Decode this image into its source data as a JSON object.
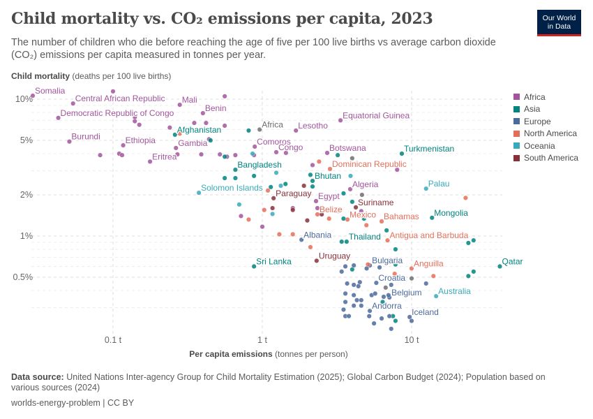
{
  "header": {
    "title": "Child mortality vs. CO₂ emissions per capita, 2023",
    "subtitle": "The number of children who die before reaching the age of five per 100 live births vs average carbon dioxide (CO₂) emissions per capita measured in tonnes per year.",
    "logo_line1": "Our World",
    "logo_line2": "in Data"
  },
  "footer": {
    "source_label": "Data source:",
    "source_text": "United Nations Inter-agency Group for Child Mortality Estimation (2025); Global Carbon Budget (2024); Population based on various sources (2024)",
    "license": "worlds-energy-problem | CC BY"
  },
  "chart_data": {
    "type": "scatter",
    "title": "Child mortality vs. CO₂ emissions per capita, 2023",
    "xlabel_bold": "Per capita emissions",
    "xlabel_rest": "(tonnes per person)",
    "ylabel_bold": "Child mortality",
    "ylabel_rest": "(deaths per 100 live births)",
    "xscale": "log",
    "yscale": "log",
    "xlim": [
      0.025,
      45
    ],
    "ylim": [
      0.19,
      12
    ],
    "xticks": [
      {
        "v": 0.1,
        "label": "0.1 t"
      },
      {
        "v": 1,
        "label": "1 t"
      },
      {
        "v": 10,
        "label": "10 t"
      }
    ],
    "yticks": [
      {
        "v": 0.5,
        "label": "0.5%"
      },
      {
        "v": 1,
        "label": "1%"
      },
      {
        "v": 2,
        "label": "2%"
      },
      {
        "v": 5,
        "label": "5%"
      },
      {
        "v": 10,
        "label": "10%"
      }
    ],
    "yminor": [
      0.3,
      0.4,
      0.6,
      0.7,
      0.8,
      0.9,
      3,
      4,
      6,
      7,
      8,
      9
    ],
    "legend_position": "right",
    "legend": [
      {
        "name": "Africa",
        "color": "#a2559c"
      },
      {
        "name": "Asia",
        "color": "#00847e"
      },
      {
        "name": "Europe",
        "color": "#4c6a9c"
      },
      {
        "name": "North America",
        "color": "#e56e5a"
      },
      {
        "name": "Oceania",
        "color": "#38aaba"
      },
      {
        "name": "South America",
        "color": "#883039"
      }
    ],
    "other_color": "#6e6e6e",
    "points": [
      {
        "label": "Somalia",
        "r": "Africa",
        "x": 0.029,
        "y": 10.6
      },
      {
        "label": "Central African Republic",
        "r": "Africa",
        "x": 0.054,
        "y": 9.3
      },
      {
        "label": "Mali",
        "r": "Africa",
        "x": 0.28,
        "y": 9.1
      },
      {
        "label": "Benin",
        "r": "Africa",
        "x": 0.4,
        "y": 7.9
      },
      {
        "label": "Democratic Republic of Congo",
        "r": "Africa",
        "x": 0.043,
        "y": 7.3
      },
      {
        "label": "Burundi",
        "r": "Africa",
        "x": 0.051,
        "y": 4.9
      },
      {
        "label": "Ethiopia",
        "r": "Africa",
        "x": 0.117,
        "y": 4.6
      },
      {
        "label": "Eritrea",
        "r": "Africa",
        "x": 0.177,
        "y": 3.5
      },
      {
        "label": "Gambia",
        "r": "Africa",
        "x": 0.264,
        "y": 4.4
      },
      {
        "label": "Afghanistan",
        "r": "Asia",
        "x": 0.26,
        "y": 5.5
      },
      {
        "label": "Africa",
        "r": "Other",
        "x": 0.96,
        "y": 6.0
      },
      {
        "label": "Lesotho",
        "r": "Africa",
        "x": 1.68,
        "y": 5.9
      },
      {
        "label": "Equatorial Guinea",
        "r": "Africa",
        "x": 3.34,
        "y": 7.0
      },
      {
        "label": "Comoros",
        "r": "Africa",
        "x": 0.89,
        "y": 4.5
      },
      {
        "label": "Congo",
        "r": "Africa",
        "x": 1.24,
        "y": 4.1
      },
      {
        "label": "Bangladesh",
        "r": "Asia",
        "x": 0.66,
        "y": 3.05
      },
      {
        "label": "Botswana",
        "r": "Africa",
        "x": 2.72,
        "y": 4.05
      },
      {
        "label": "Turkmenistan",
        "r": "Asia",
        "x": 8.6,
        "y": 4.0
      },
      {
        "label": "Dominican Republic",
        "r": "North America",
        "x": 2.84,
        "y": 3.09
      },
      {
        "label": "Solomon Islands",
        "r": "Oceania",
        "x": 0.376,
        "y": 2.07
      },
      {
        "label": "Bhutan",
        "r": "Asia",
        "x": 2.17,
        "y": 2.53
      },
      {
        "label": "Algeria",
        "r": "Africa",
        "x": 3.88,
        "y": 2.2
      },
      {
        "label": "Palau",
        "r": "Oceania",
        "x": 12.5,
        "y": 2.22
      },
      {
        "label": "Paraguay",
        "r": "South America",
        "x": 1.19,
        "y": 1.89
      },
      {
        "label": "Egypt",
        "r": "Africa",
        "x": 2.29,
        "y": 1.8
      },
      {
        "label": "Suriname",
        "r": "South America",
        "x": 4.23,
        "y": 1.62
      },
      {
        "label": "Belize",
        "r": "North America",
        "x": 2.34,
        "y": 1.44
      },
      {
        "label": "Mexico",
        "r": "North America",
        "x": 3.72,
        "y": 1.32
      },
      {
        "label": "Bahamas",
        "r": "North America",
        "x": 6.3,
        "y": 1.28
      },
      {
        "label": "Mongolia",
        "r": "Asia",
        "x": 13.7,
        "y": 1.36
      },
      {
        "label": "Albania",
        "r": "Europe",
        "x": 1.83,
        "y": 0.94
      },
      {
        "label": "Thailand",
        "r": "Asia",
        "x": 3.67,
        "y": 0.91
      },
      {
        "label": "Antigua and Barbuda",
        "r": "North America",
        "x": 6.9,
        "y": 0.93
      },
      {
        "label": "Sri Lanka",
        "r": "Asia",
        "x": 0.88,
        "y": 0.6
      },
      {
        "label": "Uruguay",
        "r": "South America",
        "x": 2.31,
        "y": 0.66
      },
      {
        "label": "Bulgaria",
        "r": "Europe",
        "x": 5.25,
        "y": 0.61
      },
      {
        "label": "Anguilla",
        "r": "North America",
        "x": 10,
        "y": 0.58
      },
      {
        "label": "Qatar",
        "r": "Asia",
        "x": 39,
        "y": 0.6
      },
      {
        "label": "Croatia",
        "r": "Europe",
        "x": 5.8,
        "y": 0.455
      },
      {
        "label": "Belgium",
        "r": "Europe",
        "x": 7.1,
        "y": 0.356
      },
      {
        "label": "Australia",
        "r": "Oceania",
        "x": 14.6,
        "y": 0.364
      },
      {
        "label": "Andorra",
        "r": "Europe",
        "x": 5.25,
        "y": 0.284
      },
      {
        "label": "Iceland",
        "r": "Europe",
        "x": 9.7,
        "y": 0.256
      },
      {
        "r": "Africa",
        "x": 0.1,
        "y": 11.4
      },
      {
        "r": "Africa",
        "x": 0.56,
        "y": 10.5
      },
      {
        "r": "Africa",
        "x": 0.14,
        "y": 7.4
      },
      {
        "r": "Africa",
        "x": 0.14,
        "y": 6.9
      },
      {
        "r": "Africa",
        "x": 0.15,
        "y": 6.5
      },
      {
        "r": "Africa",
        "x": 0.24,
        "y": 6.2
      },
      {
        "r": "Africa",
        "x": 0.35,
        "y": 6.7
      },
      {
        "r": "Africa",
        "x": 0.42,
        "y": 6.7
      },
      {
        "r": "Africa",
        "x": 0.56,
        "y": 6.4
      },
      {
        "r": "Africa",
        "x": 0.082,
        "y": 3.9
      },
      {
        "r": "Africa",
        "x": 0.11,
        "y": 4.0
      },
      {
        "r": "Africa",
        "x": 0.115,
        "y": 3.9
      },
      {
        "r": "Africa",
        "x": 0.39,
        "y": 3.95
      },
      {
        "r": "Africa",
        "x": 0.52,
        "y": 3.95
      },
      {
        "r": "Africa",
        "x": 0.58,
        "y": 3.8
      },
      {
        "r": "Africa",
        "x": 0.66,
        "y": 3.9
      },
      {
        "r": "Africa",
        "x": 0.88,
        "y": 3.9
      },
      {
        "r": "Africa",
        "x": 1.44,
        "y": 4.05
      },
      {
        "r": "Africa",
        "x": 2.17,
        "y": 3.3
      },
      {
        "r": "Africa",
        "x": 8.0,
        "y": 3.05
      },
      {
        "r": "Africa",
        "x": 0.27,
        "y": 3.95
      },
      {
        "r": "Africa",
        "x": 0.44,
        "y": 5.1
      },
      {
        "r": "Africa",
        "x": 2.34,
        "y": 1.6
      },
      {
        "r": "Africa",
        "x": 3.2,
        "y": 1.52
      },
      {
        "r": "Africa",
        "x": 1.6,
        "y": 1.6
      },
      {
        "r": "Africa",
        "x": 1.0,
        "y": 1.17
      },
      {
        "r": "Africa",
        "x": 0.72,
        "y": 1.4
      },
      {
        "r": "Africa",
        "x": 4.6,
        "y": 1.52
      },
      {
        "r": "Asia",
        "x": 0.81,
        "y": 5.9
      },
      {
        "r": "Asia",
        "x": 0.45,
        "y": 5.0
      },
      {
        "r": "Asia",
        "x": 0.56,
        "y": 3.8
      },
      {
        "r": "Asia",
        "x": 0.56,
        "y": 2.65
      },
      {
        "r": "Asia",
        "x": 0.66,
        "y": 2.65
      },
      {
        "r": "Asia",
        "x": 0.88,
        "y": 2.75
      },
      {
        "r": "Asia",
        "x": 1.14,
        "y": 2.28
      },
      {
        "r": "Asia",
        "x": 1.43,
        "y": 2.4
      },
      {
        "r": "Asia",
        "x": 3.2,
        "y": 3.9
      },
      {
        "r": "Asia",
        "x": 2.1,
        "y": 2.8
      },
      {
        "r": "Asia",
        "x": 2.17,
        "y": 2.3
      },
      {
        "r": "Asia",
        "x": 3.5,
        "y": 2.05
      },
      {
        "r": "Asia",
        "x": 4.0,
        "y": 1.78
      },
      {
        "r": "Asia",
        "x": 3.5,
        "y": 1.34
      },
      {
        "r": "Asia",
        "x": 3.4,
        "y": 0.91
      },
      {
        "r": "Asia",
        "x": 6.8,
        "y": 1.1
      },
      {
        "r": "Asia",
        "x": 7.8,
        "y": 0.8
      },
      {
        "r": "Asia",
        "x": 26,
        "y": 0.93
      },
      {
        "r": "Asia",
        "x": 24,
        "y": 0.89
      },
      {
        "r": "Asia",
        "x": 26,
        "y": 0.55
      },
      {
        "r": "Asia",
        "x": 24,
        "y": 0.51
      },
      {
        "r": "Asia",
        "x": 4.0,
        "y": 0.57
      },
      {
        "r": "Asia",
        "x": 7.8,
        "y": 0.62
      },
      {
        "r": "Asia",
        "x": 6.4,
        "y": 0.33
      },
      {
        "r": "Asia",
        "x": 7.8,
        "y": 0.24
      },
      {
        "r": "Asia",
        "x": 7.5,
        "y": 0.26
      },
      {
        "r": "Asia",
        "x": 4.8,
        "y": 1.34
      },
      {
        "r": "Europe",
        "x": 3.6,
        "y": 0.6
      },
      {
        "r": "Europe",
        "x": 3.4,
        "y": 0.55
      },
      {
        "r": "Europe",
        "x": 4.1,
        "y": 0.61
      },
      {
        "r": "Europe",
        "x": 5.0,
        "y": 0.58
      },
      {
        "r": "Europe",
        "x": 6.1,
        "y": 0.59
      },
      {
        "r": "Europe",
        "x": 3.7,
        "y": 0.45
      },
      {
        "r": "Europe",
        "x": 4.1,
        "y": 0.44
      },
      {
        "r": "Europe",
        "x": 4.5,
        "y": 0.46
      },
      {
        "r": "Europe",
        "x": 4.4,
        "y": 0.43
      },
      {
        "r": "Europe",
        "x": 3.6,
        "y": 0.38
      },
      {
        "r": "Europe",
        "x": 4.1,
        "y": 0.37
      },
      {
        "r": "Europe",
        "x": 3.6,
        "y": 0.33
      },
      {
        "r": "Europe",
        "x": 4.3,
        "y": 0.34
      },
      {
        "r": "Europe",
        "x": 4.6,
        "y": 0.34
      },
      {
        "r": "Europe",
        "x": 5.4,
        "y": 0.37
      },
      {
        "r": "Europe",
        "x": 5.7,
        "y": 0.38
      },
      {
        "r": "Europe",
        "x": 6.5,
        "y": 0.36
      },
      {
        "r": "Europe",
        "x": 7.0,
        "y": 0.37
      },
      {
        "r": "Europe",
        "x": 3.5,
        "y": 0.29
      },
      {
        "r": "Europe",
        "x": 4.1,
        "y": 0.31
      },
      {
        "r": "Europe",
        "x": 4.6,
        "y": 0.31
      },
      {
        "r": "Europe",
        "x": 3.6,
        "y": 0.26
      },
      {
        "r": "Europe",
        "x": 3.8,
        "y": 0.26
      },
      {
        "r": "Europe",
        "x": 5.2,
        "y": 0.26
      },
      {
        "r": "Europe",
        "x": 5.6,
        "y": 0.23
      },
      {
        "r": "Europe",
        "x": 6.3,
        "y": 0.25
      },
      {
        "r": "Europe",
        "x": 7.1,
        "y": 0.26
      },
      {
        "r": "Europe",
        "x": 7.3,
        "y": 0.21
      },
      {
        "r": "Europe",
        "x": 10,
        "y": 0.24
      },
      {
        "r": "Europe",
        "x": 12.5,
        "y": 0.45
      },
      {
        "r": "Europe",
        "x": 7.3,
        "y": 0.44
      },
      {
        "r": "North America",
        "x": 0.28,
        "y": 5.6
      },
      {
        "r": "North America",
        "x": 1.09,
        "y": 2.15
      },
      {
        "r": "North America",
        "x": 1.03,
        "y": 1.55
      },
      {
        "r": "North America",
        "x": 0.81,
        "y": 1.32
      },
      {
        "r": "North America",
        "x": 1.3,
        "y": 1.03
      },
      {
        "r": "North America",
        "x": 1.6,
        "y": 1.03
      },
      {
        "r": "North America",
        "x": 2.1,
        "y": 0.83
      },
      {
        "r": "North America",
        "x": 2.8,
        "y": 1.55
      },
      {
        "r": "North America",
        "x": 2.4,
        "y": 3.5
      },
      {
        "r": "North America",
        "x": 4.98,
        "y": 1.2
      },
      {
        "r": "North America",
        "x": 5.1,
        "y": 0.62
      },
      {
        "r": "North America",
        "x": 7.7,
        "y": 0.53
      },
      {
        "r": "North America",
        "x": 14,
        "y": 0.51
      },
      {
        "r": "North America",
        "x": 23,
        "y": 1.9
      },
      {
        "r": "North America",
        "x": 2.8,
        "y": 1.34
      },
      {
        "r": "Oceania",
        "x": 0.7,
        "y": 1.7
      },
      {
        "r": "Oceania",
        "x": 1.24,
        "y": 2.9
      },
      {
        "r": "Oceania",
        "x": 1.33,
        "y": 2.33
      },
      {
        "r": "Oceania",
        "x": 3.9,
        "y": 2.75
      },
      {
        "r": "Oceania",
        "x": 0.86,
        "y": 4.0
      },
      {
        "r": "Oceania",
        "x": 1.17,
        "y": 1.45
      },
      {
        "r": "South America",
        "x": 1.9,
        "y": 2.33
      },
      {
        "r": "South America",
        "x": 1.17,
        "y": 1.6
      },
      {
        "r": "South America",
        "x": 1.6,
        "y": 1.55
      },
      {
        "r": "South America",
        "x": 2.0,
        "y": 1.3
      },
      {
        "r": "South America",
        "x": 2.5,
        "y": 1.44
      },
      {
        "r": "Other",
        "x": 4.65,
        "y": 2.0
      },
      {
        "r": "Other",
        "x": 10,
        "y": 0.49
      },
      {
        "r": "Other",
        "x": 6.7,
        "y": 0.42
      },
      {
        "r": "Other",
        "x": 4.0,
        "y": 3.7
      }
    ]
  }
}
